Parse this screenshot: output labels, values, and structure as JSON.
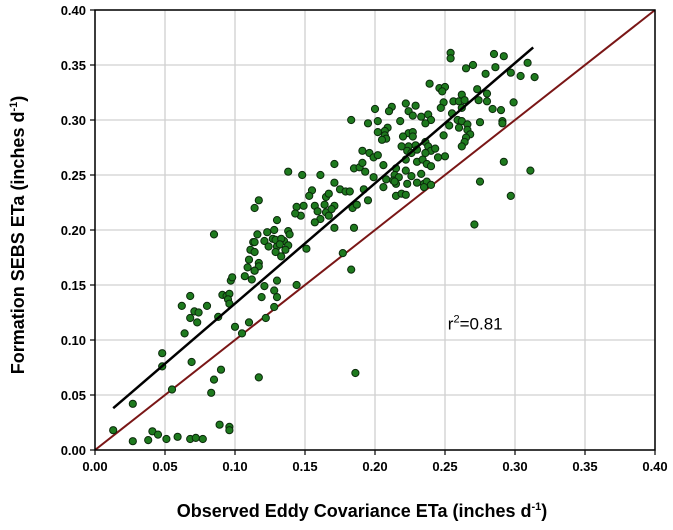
{
  "chart_data": {
    "type": "scatter",
    "xlabel_main": "Observed Eddy Covariance ETa (inches d",
    "xlabel_sup": "-1",
    "xlabel_end": ")",
    "ylabel_main": "Formation  SEBS ETa  (inches d",
    "ylabel_sup": "-1",
    "ylabel_end": ")",
    "xlim": [
      0,
      0.4
    ],
    "ylim": [
      0,
      0.4
    ],
    "xticks": [
      "0.00",
      "0.05",
      "0.10",
      "0.15",
      "0.20",
      "0.25",
      "0.30",
      "0.35",
      "0.40"
    ],
    "yticks": [
      "0.00",
      "0.05",
      "0.10",
      "0.15",
      "0.20",
      "0.25",
      "0.30",
      "0.35",
      "0.40"
    ],
    "grid": true,
    "annotation": {
      "r": "r",
      "sup": "2",
      "value": "=0.81",
      "x": 0.252,
      "y": 0.115
    },
    "regression_line": {
      "x": [
        0.013,
        0.313
      ],
      "y": [
        0.038,
        0.366
      ],
      "color": "#000000"
    },
    "one_to_one_line": {
      "x": [
        0,
        0.4
      ],
      "y": [
        0,
        0.4
      ],
      "color": "#7a1616"
    },
    "point_color": "#1e7a1e",
    "points": [
      [
        0.013,
        0.018
      ],
      [
        0.027,
        0.042
      ],
      [
        0.027,
        0.008
      ],
      [
        0.038,
        0.009
      ],
      [
        0.041,
        0.017
      ],
      [
        0.045,
        0.014
      ],
      [
        0.051,
        0.01
      ],
      [
        0.059,
        0.012
      ],
      [
        0.068,
        0.01
      ],
      [
        0.072,
        0.011
      ],
      [
        0.077,
        0.01
      ],
      [
        0.096,
        0.021
      ],
      [
        0.096,
        0.018
      ],
      [
        0.089,
        0.023
      ],
      [
        0.055,
        0.055
      ],
      [
        0.048,
        0.076
      ],
      [
        0.048,
        0.088
      ],
      [
        0.069,
        0.08
      ],
      [
        0.064,
        0.106
      ],
      [
        0.062,
        0.131
      ],
      [
        0.068,
        0.14
      ],
      [
        0.068,
        0.12
      ],
      [
        0.071,
        0.126
      ],
      [
        0.074,
        0.125
      ],
      [
        0.073,
        0.116
      ],
      [
        0.08,
        0.131
      ],
      [
        0.088,
        0.121
      ],
      [
        0.085,
        0.196
      ],
      [
        0.083,
        0.052
      ],
      [
        0.085,
        0.064
      ],
      [
        0.09,
        0.073
      ],
      [
        0.091,
        0.141
      ],
      [
        0.094,
        0.14
      ],
      [
        0.096,
        0.142
      ],
      [
        0.095,
        0.137
      ],
      [
        0.096,
        0.133
      ],
      [
        0.097,
        0.154
      ],
      [
        0.1,
        0.112
      ],
      [
        0.105,
        0.106
      ],
      [
        0.11,
        0.116
      ],
      [
        0.117,
        0.066
      ],
      [
        0.119,
        0.139
      ],
      [
        0.122,
        0.12
      ],
      [
        0.128,
        0.13
      ],
      [
        0.128,
        0.145
      ],
      [
        0.107,
        0.158
      ],
      [
        0.112,
        0.155
      ],
      [
        0.114,
        0.163
      ],
      [
        0.11,
        0.173
      ],
      [
        0.111,
        0.182
      ],
      [
        0.113,
        0.189
      ],
      [
        0.114,
        0.22
      ],
      [
        0.121,
        0.19
      ],
      [
        0.124,
        0.185
      ],
      [
        0.128,
        0.2
      ],
      [
        0.13,
        0.185
      ],
      [
        0.129,
        0.18
      ],
      [
        0.133,
        0.176
      ],
      [
        0.135,
        0.19
      ],
      [
        0.254,
        0.361
      ],
      [
        0.254,
        0.356
      ],
      [
        0.285,
        0.36
      ],
      [
        0.292,
        0.358
      ],
      [
        0.27,
        0.35
      ],
      [
        0.265,
        0.347
      ],
      [
        0.286,
        0.348
      ],
      [
        0.309,
        0.352
      ],
      [
        0.297,
        0.343
      ],
      [
        0.304,
        0.34
      ],
      [
        0.314,
        0.339
      ],
      [
        0.279,
        0.342
      ],
      [
        0.239,
        0.333
      ],
      [
        0.246,
        0.329
      ],
      [
        0.25,
        0.33
      ],
      [
        0.248,
        0.326
      ],
      [
        0.273,
        0.328
      ],
      [
        0.28,
        0.324
      ],
      [
        0.262,
        0.323
      ],
      [
        0.256,
        0.317
      ],
      [
        0.26,
        0.317
      ],
      [
        0.264,
        0.318
      ],
      [
        0.274,
        0.318
      ],
      [
        0.28,
        0.317
      ],
      [
        0.249,
        0.316
      ],
      [
        0.247,
        0.311
      ],
      [
        0.262,
        0.311
      ],
      [
        0.284,
        0.31
      ],
      [
        0.29,
        0.309
      ],
      [
        0.299,
        0.316
      ],
      [
        0.222,
        0.315
      ],
      [
        0.229,
        0.313
      ],
      [
        0.212,
        0.312
      ],
      [
        0.2,
        0.31
      ],
      [
        0.21,
        0.308
      ],
      [
        0.224,
        0.308
      ],
      [
        0.227,
        0.304
      ],
      [
        0.233,
        0.303
      ],
      [
        0.238,
        0.305
      ],
      [
        0.24,
        0.3
      ],
      [
        0.236,
        0.297
      ],
      [
        0.255,
        0.306
      ],
      [
        0.259,
        0.3
      ],
      [
        0.262,
        0.299
      ],
      [
        0.266,
        0.296
      ],
      [
        0.275,
        0.298
      ],
      [
        0.291,
        0.299
      ],
      [
        0.291,
        0.297
      ],
      [
        0.183,
        0.3
      ],
      [
        0.195,
        0.297
      ],
      [
        0.202,
        0.299
      ],
      [
        0.218,
        0.299
      ],
      [
        0.209,
        0.293
      ],
      [
        0.207,
        0.29
      ],
      [
        0.202,
        0.289
      ],
      [
        0.207,
        0.286
      ],
      [
        0.208,
        0.283
      ],
      [
        0.205,
        0.282
      ],
      [
        0.224,
        0.288
      ],
      [
        0.227,
        0.289
      ],
      [
        0.22,
        0.285
      ],
      [
        0.227,
        0.285
      ],
      [
        0.249,
        0.286
      ],
      [
        0.253,
        0.295
      ],
      [
        0.26,
        0.293
      ],
      [
        0.266,
        0.291
      ],
      [
        0.268,
        0.287
      ],
      [
        0.265,
        0.284
      ],
      [
        0.264,
        0.28
      ],
      [
        0.262,
        0.276
      ],
      [
        0.219,
        0.276
      ],
      [
        0.224,
        0.276
      ],
      [
        0.229,
        0.277
      ],
      [
        0.236,
        0.28
      ],
      [
        0.238,
        0.276
      ],
      [
        0.24,
        0.272
      ],
      [
        0.243,
        0.274
      ],
      [
        0.223,
        0.272
      ],
      [
        0.226,
        0.27
      ],
      [
        0.23,
        0.273
      ],
      [
        0.236,
        0.27
      ],
      [
        0.191,
        0.272
      ],
      [
        0.196,
        0.27
      ],
      [
        0.199,
        0.266
      ],
      [
        0.202,
        0.268
      ],
      [
        0.206,
        0.259
      ],
      [
        0.222,
        0.264
      ],
      [
        0.23,
        0.262
      ],
      [
        0.234,
        0.264
      ],
      [
        0.237,
        0.26
      ],
      [
        0.24,
        0.258
      ],
      [
        0.245,
        0.266
      ],
      [
        0.25,
        0.267
      ],
      [
        0.171,
        0.26
      ],
      [
        0.185,
        0.256
      ],
      [
        0.189,
        0.257
      ],
      [
        0.191,
        0.261
      ],
      [
        0.193,
        0.253
      ],
      [
        0.215,
        0.256
      ],
      [
        0.222,
        0.254
      ],
      [
        0.226,
        0.249
      ],
      [
        0.233,
        0.251
      ],
      [
        0.138,
        0.253
      ],
      [
        0.148,
        0.25
      ],
      [
        0.161,
        0.25
      ],
      [
        0.199,
        0.248
      ],
      [
        0.208,
        0.246
      ],
      [
        0.214,
        0.25
      ],
      [
        0.213,
        0.245
      ],
      [
        0.215,
        0.242
      ],
      [
        0.217,
        0.248
      ],
      [
        0.223,
        0.242
      ],
      [
        0.206,
        0.239
      ],
      [
        0.214,
        0.244
      ],
      [
        0.23,
        0.243
      ],
      [
        0.235,
        0.242
      ],
      [
        0.237,
        0.244
      ],
      [
        0.24,
        0.241
      ],
      [
        0.235,
        0.239
      ],
      [
        0.292,
        0.262
      ],
      [
        0.311,
        0.254
      ],
      [
        0.275,
        0.244
      ],
      [
        0.297,
        0.231
      ],
      [
        0.271,
        0.205
      ],
      [
        0.171,
        0.243
      ],
      [
        0.175,
        0.237
      ],
      [
        0.179,
        0.235
      ],
      [
        0.182,
        0.235
      ],
      [
        0.192,
        0.237
      ],
      [
        0.195,
        0.227
      ],
      [
        0.215,
        0.231
      ],
      [
        0.219,
        0.233
      ],
      [
        0.222,
        0.232
      ],
      [
        0.155,
        0.236
      ],
      [
        0.153,
        0.231
      ],
      [
        0.165,
        0.23
      ],
      [
        0.167,
        0.233
      ],
      [
        0.117,
        0.227
      ],
      [
        0.144,
        0.221
      ],
      [
        0.149,
        0.222
      ],
      [
        0.147,
        0.213
      ],
      [
        0.143,
        0.215
      ],
      [
        0.157,
        0.222
      ],
      [
        0.159,
        0.217
      ],
      [
        0.164,
        0.223
      ],
      [
        0.171,
        0.222
      ],
      [
        0.165,
        0.216
      ],
      [
        0.167,
        0.213
      ],
      [
        0.169,
        0.219
      ],
      [
        0.184,
        0.22
      ],
      [
        0.187,
        0.223
      ],
      [
        0.161,
        0.21
      ],
      [
        0.157,
        0.207
      ],
      [
        0.13,
        0.209
      ],
      [
        0.171,
        0.202
      ],
      [
        0.185,
        0.202
      ],
      [
        0.123,
        0.198
      ],
      [
        0.116,
        0.196
      ],
      [
        0.138,
        0.199
      ],
      [
        0.139,
        0.196
      ],
      [
        0.127,
        0.192
      ],
      [
        0.129,
        0.191
      ],
      [
        0.133,
        0.192
      ],
      [
        0.114,
        0.189
      ],
      [
        0.132,
        0.187
      ],
      [
        0.138,
        0.186
      ],
      [
        0.136,
        0.182
      ],
      [
        0.151,
        0.183
      ],
      [
        0.114,
        0.18
      ],
      [
        0.177,
        0.179
      ],
      [
        0.109,
        0.166
      ],
      [
        0.117,
        0.17
      ],
      [
        0.117,
        0.167
      ],
      [
        0.114,
        0.163
      ],
      [
        0.183,
        0.164
      ],
      [
        0.098,
        0.157
      ],
      [
        0.13,
        0.154
      ],
      [
        0.121,
        0.149
      ],
      [
        0.144,
        0.15
      ],
      [
        0.13,
        0.139
      ],
      [
        0.186,
        0.07
      ]
    ]
  }
}
